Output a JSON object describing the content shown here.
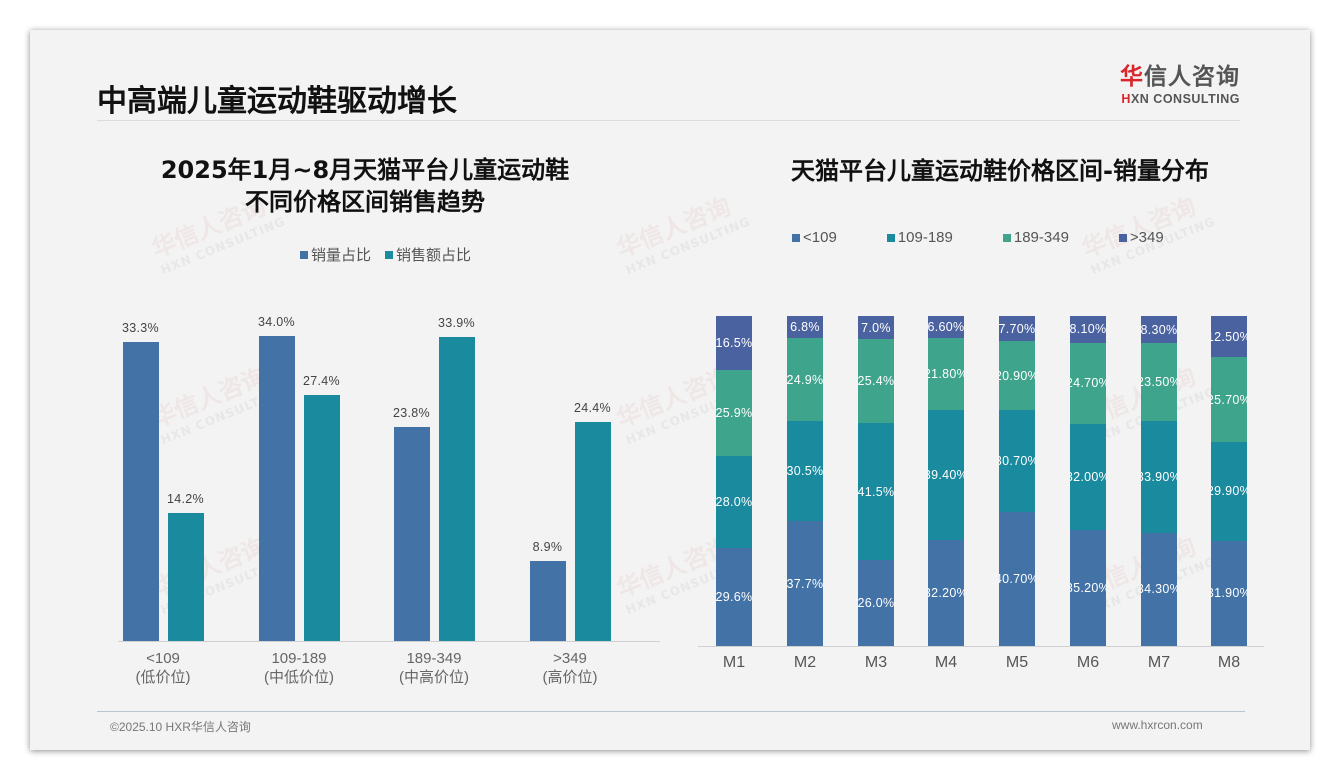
{
  "slide": {
    "title": "中高端儿童运动鞋驱动增长",
    "logo": {
      "cn_red": "华",
      "cn_rest": "信人咨询",
      "en_red": "H",
      "en_rest": "XN CONSULTING"
    },
    "footer": {
      "left": "©2025.10 HXR华信人咨询",
      "right": "www.hxrcon.com"
    },
    "watermark": {
      "cn": "华信人咨询",
      "en": "HXN CONSULTING"
    }
  },
  "colors": {
    "blue": "#4272a6",
    "teal": "#1a8a9e",
    "green": "#3fa48c",
    "indigo": "#4a62a0",
    "background": "#f3f3f3"
  },
  "chart_data": [
    {
      "type": "bar",
      "title": "2025年1月~8月天猫平台儿童运动鞋 不同价格区间销售趋势",
      "title_lines": [
        "2025年1月~8月天猫平台儿童运动鞋",
        "不同价格区间销售趋势"
      ],
      "categories": [
        "<109",
        "109-189",
        "189-349",
        ">349"
      ],
      "category_sublabels": [
        "(低价位)",
        "(中低价位)",
        "(中高价位)",
        "(高价位)"
      ],
      "series": [
        {
          "name": "销量占比",
          "color": "#4272a6",
          "values": [
            33.3,
            34.0,
            23.8,
            8.9
          ],
          "labels": [
            "33.3%",
            "34.0%",
            "23.8%",
            "8.9%"
          ]
        },
        {
          "name": "销售额占比",
          "color": "#1a8a9e",
          "values": [
            14.2,
            27.4,
            33.9,
            24.4
          ],
          "labels": [
            "14.2%",
            "27.4%",
            "33.9%",
            "24.4%"
          ]
        }
      ],
      "xlabel": "",
      "ylabel": "",
      "unit": "%",
      "legend_position": "top",
      "grid": false
    },
    {
      "type": "bar",
      "stacked": true,
      "title": "天猫平台儿童运动鞋价格区间-销量分布",
      "categories": [
        "M1",
        "M2",
        "M3",
        "M4",
        "M5",
        "M6",
        "M7",
        "M8"
      ],
      "series": [
        {
          "name": "<109",
          "color": "#4272a6",
          "values": [
            29.6,
            37.7,
            26.0,
            32.2,
            40.7,
            35.2,
            34.3,
            31.9
          ],
          "labels": [
            "29.6%",
            "37.7%",
            "26.0%",
            "32.20%",
            "40.70%",
            "35.20%",
            "34.30%",
            "31.90%"
          ]
        },
        {
          "name": "109-189",
          "color": "#1a8a9e",
          "values": [
            28.0,
            30.5,
            41.5,
            39.4,
            30.7,
            32.0,
            33.9,
            29.9
          ],
          "labels": [
            "28.0%",
            "30.5%",
            "41.5%",
            "39.40%",
            "30.70%",
            "32.00%",
            "33.90%",
            "29.90%"
          ]
        },
        {
          "name": "189-349",
          "color": "#3fa48c",
          "values": [
            25.9,
            24.9,
            25.4,
            21.8,
            20.9,
            24.7,
            23.5,
            25.7
          ],
          "labels": [
            "25.9%",
            "24.9%",
            "25.4%",
            "21.80%",
            "20.90%",
            "24.70%",
            "23.50%",
            "25.70%"
          ]
        },
        {
          "name": ">349",
          "color": "#4a62a0",
          "values": [
            16.5,
            6.8,
            7.0,
            6.6,
            7.7,
            8.1,
            8.3,
            12.5
          ],
          "labels": [
            "16.5%",
            "6.8%",
            "7.0%",
            "6.60%",
            "7.70%",
            "8.10%",
            "8.30%",
            "12.50%"
          ]
        }
      ],
      "xlabel": "",
      "ylabel": "",
      "unit": "%",
      "ylim": [
        0,
        100
      ],
      "legend_position": "top",
      "grid": false
    }
  ]
}
